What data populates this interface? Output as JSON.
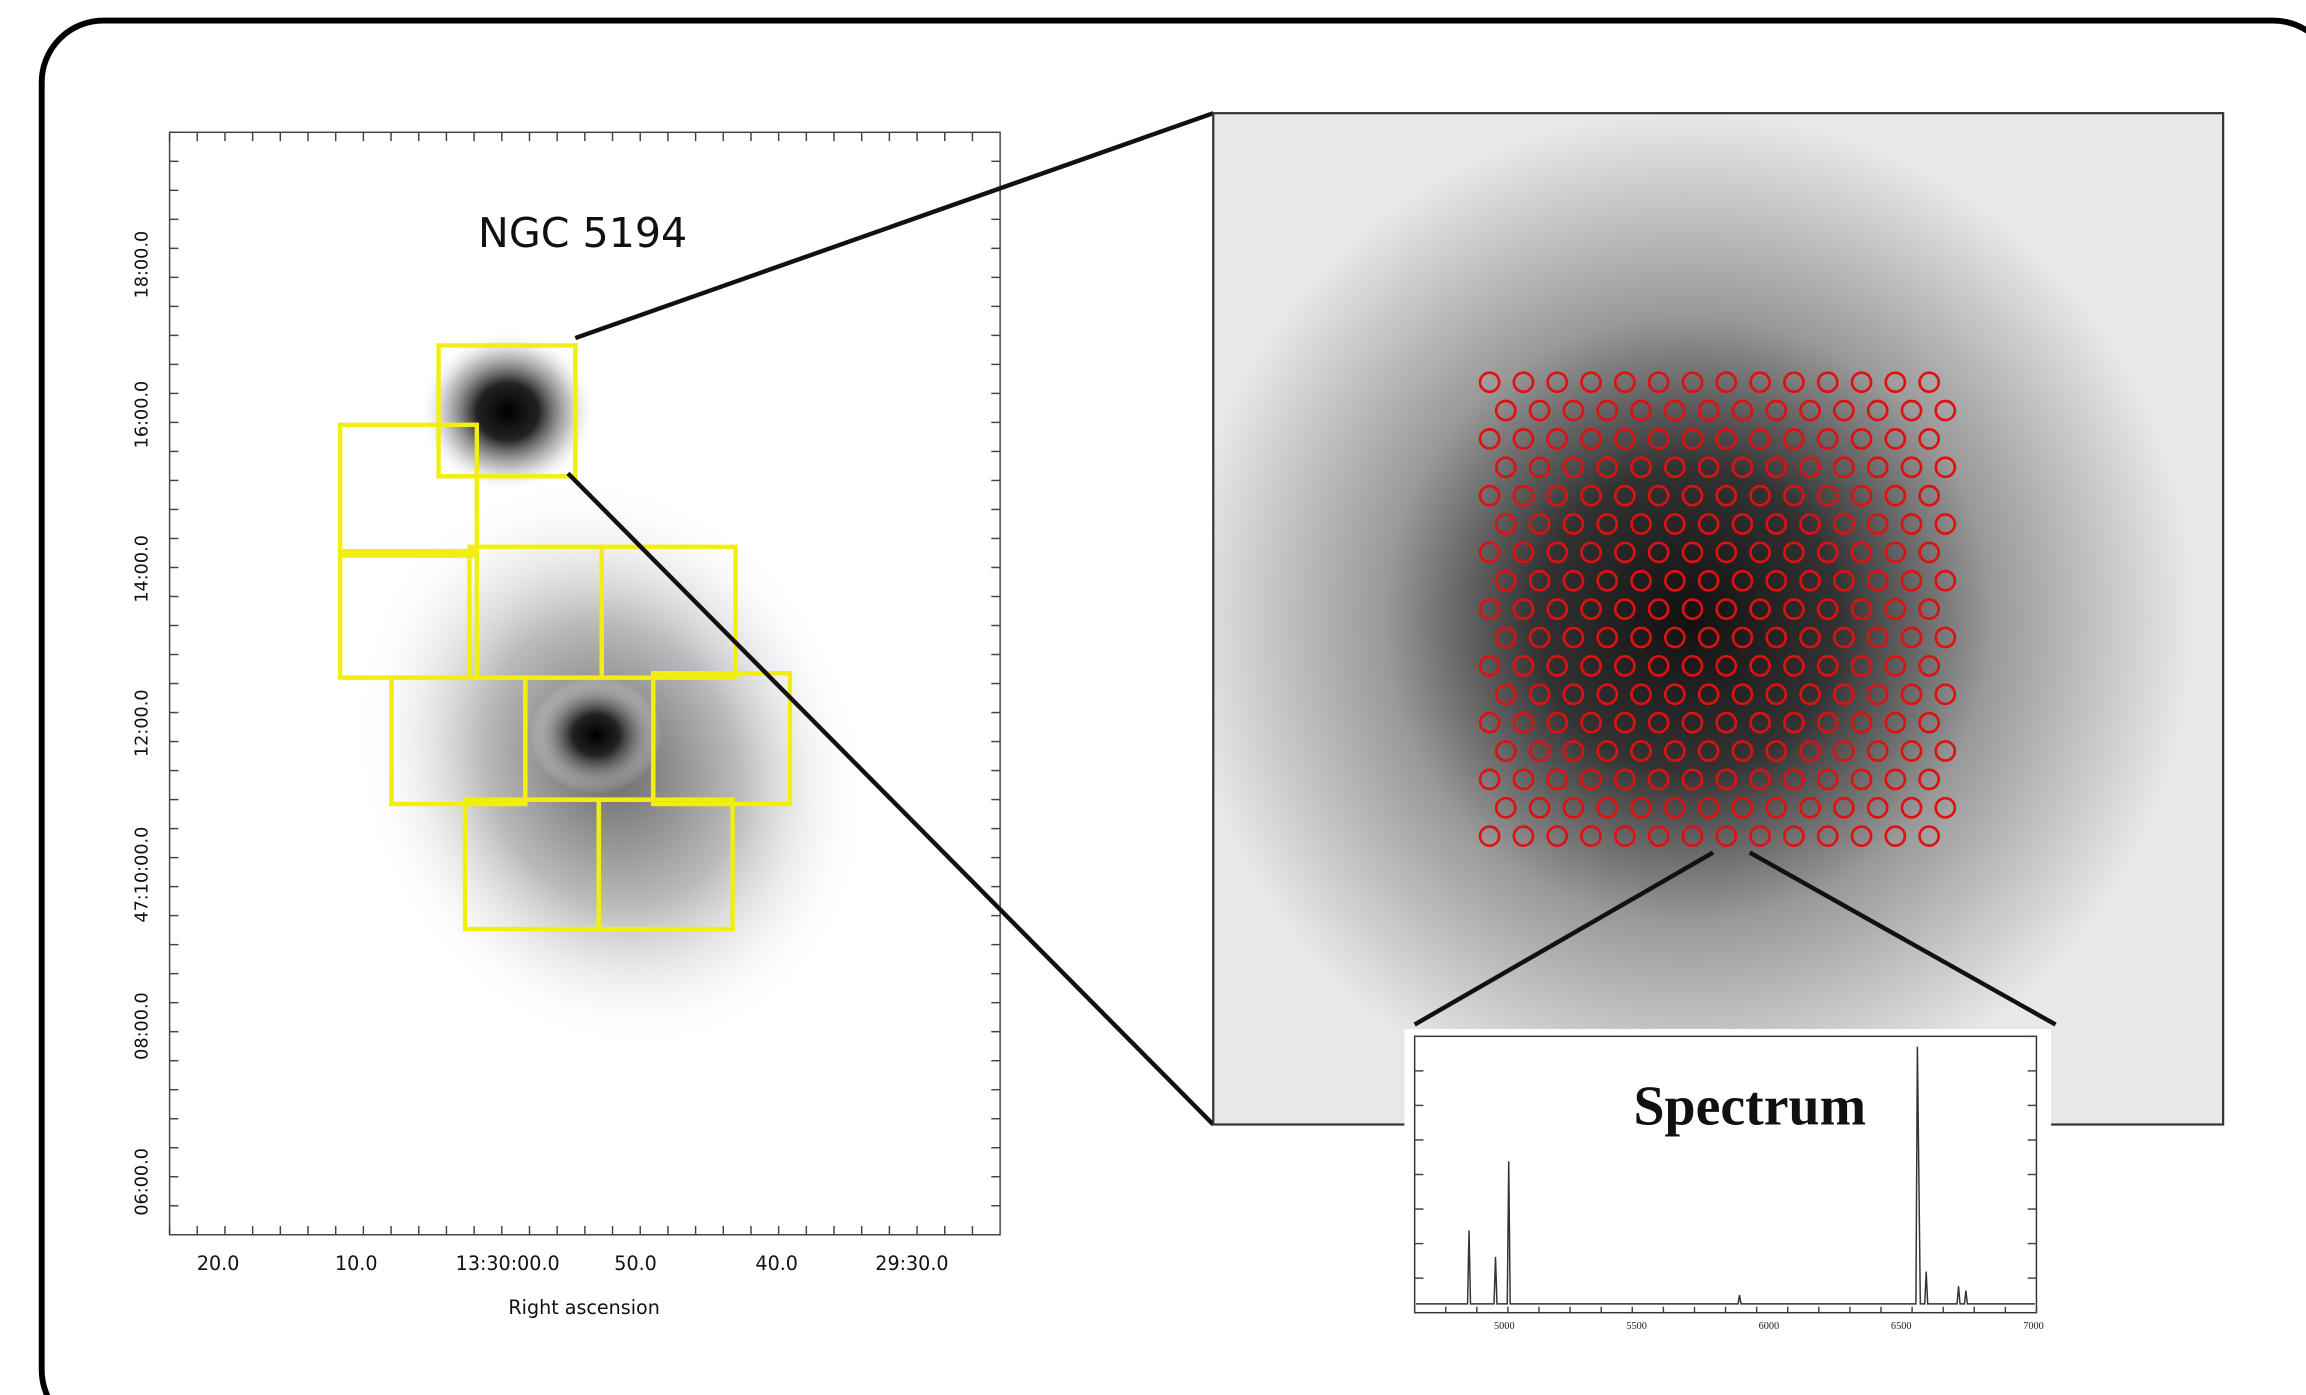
{
  "left_panel": {
    "title": "NGC 5194",
    "x_axis": {
      "label": "Right ascension",
      "ticks": [
        "20.0",
        "10.0",
        "13:30:00.0",
        "50.0",
        "40.0",
        "29:30.0"
      ]
    },
    "y_axis": {
      "ticks": [
        "06:00.0",
        "08:00.0",
        "47:10:00.0",
        "12:00.0",
        "14:00.0",
        "16:00.0",
        "18:00.0"
      ]
    }
  },
  "spectrum": {
    "label": "Spectrum",
    "x_ticks": [
      "5000",
      "5500",
      "6000",
      "6500",
      "7000"
    ]
  }
}
